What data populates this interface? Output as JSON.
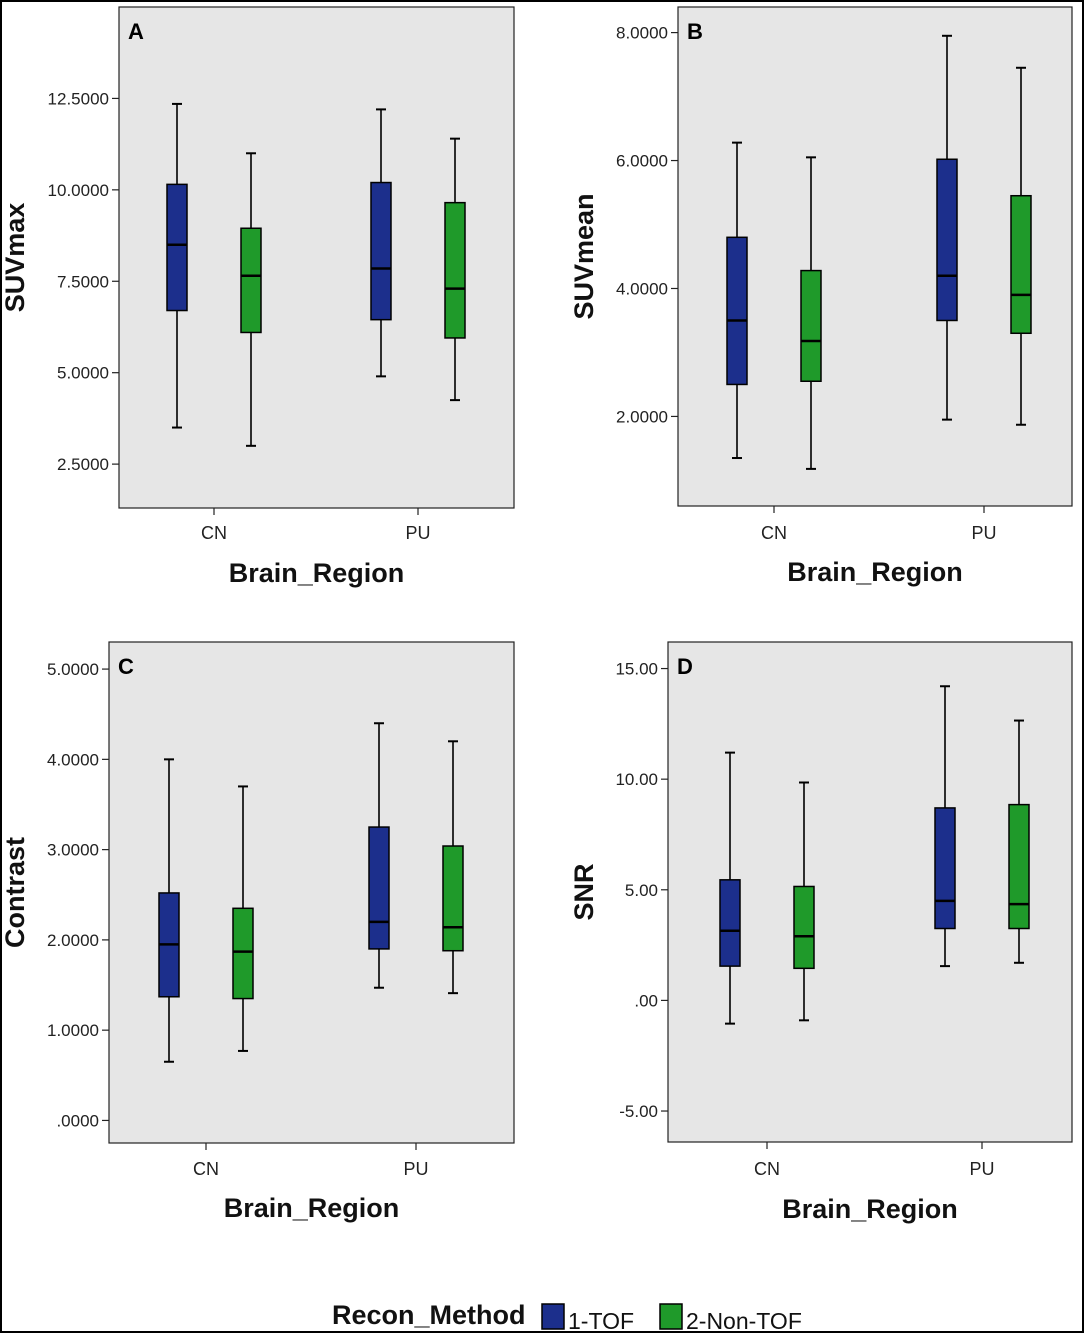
{
  "chart_data": [
    {
      "type": "boxplot",
      "panel_label": "A",
      "xlabel": "Brain_Region",
      "ylabel": "SUVmax",
      "categories": [
        "CN",
        "PU"
      ],
      "yticks": [
        "2.5000",
        "5.0000",
        "7.5000",
        "10.0000",
        "12.5000"
      ],
      "ylim": [
        1.3,
        15.0
      ],
      "series": [
        {
          "name": "1-TOF",
          "boxes": [
            {
              "category": "CN",
              "min": 3.5,
              "q1": 6.7,
              "median": 8.5,
              "q3": 10.15,
              "max": 12.35
            },
            {
              "category": "PU",
              "min": 4.9,
              "q1": 6.45,
              "median": 7.85,
              "q3": 10.2,
              "max": 12.2
            }
          ]
        },
        {
          "name": "2-Non-TOF",
          "boxes": [
            {
              "category": "CN",
              "min": 3.0,
              "q1": 6.1,
              "median": 7.65,
              "q3": 8.95,
              "max": 11.0
            },
            {
              "category": "PU",
              "min": 4.25,
              "q1": 5.95,
              "median": 7.3,
              "q3": 9.65,
              "max": 11.4
            }
          ]
        }
      ]
    },
    {
      "type": "boxplot",
      "panel_label": "B",
      "xlabel": "Brain_Region",
      "ylabel": "SUVmean",
      "categories": [
        "CN",
        "PU"
      ],
      "yticks": [
        "2.0000",
        "4.0000",
        "6.0000",
        "8.0000"
      ],
      "ylim": [
        0.6,
        8.4
      ],
      "series": [
        {
          "name": "1-TOF",
          "boxes": [
            {
              "category": "CN",
              "min": 1.35,
              "q1": 2.5,
              "median": 3.5,
              "q3": 4.8,
              "max": 6.28
            },
            {
              "category": "PU",
              "min": 1.95,
              "q1": 3.5,
              "median": 4.2,
              "q3": 6.02,
              "max": 7.95
            }
          ]
        },
        {
          "name": "2-Non-TOF",
          "boxes": [
            {
              "category": "CN",
              "min": 1.18,
              "q1": 2.55,
              "median": 3.18,
              "q3": 4.28,
              "max": 6.05
            },
            {
              "category": "PU",
              "min": 1.87,
              "q1": 3.3,
              "median": 3.9,
              "q3": 5.45,
              "max": 7.45
            }
          ]
        }
      ]
    },
    {
      "type": "boxplot",
      "panel_label": "C",
      "xlabel": "Brain_Region",
      "ylabel": "Contrast",
      "categories": [
        "CN",
        "PU"
      ],
      "yticks": [
        ".0000",
        "1.0000",
        "2.0000",
        "3.0000",
        "4.0000",
        "5.0000"
      ],
      "ylim": [
        -0.25,
        5.3
      ],
      "series": [
        {
          "name": "1-TOF",
          "boxes": [
            {
              "category": "CN",
              "min": 0.65,
              "q1": 1.37,
              "median": 1.95,
              "q3": 2.52,
              "max": 4.0
            },
            {
              "category": "PU",
              "min": 1.47,
              "q1": 1.9,
              "median": 2.2,
              "q3": 3.25,
              "max": 4.4
            }
          ]
        },
        {
          "name": "2-Non-TOF",
          "boxes": [
            {
              "category": "CN",
              "min": 0.77,
              "q1": 1.35,
              "median": 1.87,
              "q3": 2.35,
              "max": 3.7
            },
            {
              "category": "PU",
              "min": 1.41,
              "q1": 1.88,
              "median": 2.14,
              "q3": 3.04,
              "max": 4.2
            }
          ]
        }
      ]
    },
    {
      "type": "boxplot",
      "panel_label": "D",
      "xlabel": "Brain_Region",
      "ylabel": "SNR",
      "categories": [
        "CN",
        "PU"
      ],
      "yticks": [
        "-5.00",
        ".00",
        "5.00",
        "10.00",
        "15.00"
      ],
      "ylim": [
        -6.4,
        16.2
      ],
      "series": [
        {
          "name": "1-TOF",
          "boxes": [
            {
              "category": "CN",
              "min": -1.05,
              "q1": 1.55,
              "median": 3.15,
              "q3": 5.45,
              "max": 11.2
            },
            {
              "category": "PU",
              "min": 1.55,
              "q1": 3.25,
              "median": 4.5,
              "q3": 8.7,
              "max": 14.2
            }
          ]
        },
        {
          "name": "2-Non-TOF",
          "boxes": [
            {
              "category": "CN",
              "min": -0.9,
              "q1": 1.45,
              "median": 2.9,
              "q3": 5.15,
              "max": 9.85
            },
            {
              "category": "PU",
              "min": 1.7,
              "q1": 3.25,
              "median": 4.35,
              "q3": 8.85,
              "max": 12.65
            }
          ]
        }
      ]
    }
  ],
  "legend": {
    "title": "Recon_Method",
    "items": [
      {
        "label": "1-TOF",
        "color": "#1c2f8c"
      },
      {
        "label": "2-Non-TOF",
        "color": "#1f9a2a"
      }
    ]
  },
  "colors": {
    "panel_bg": "#e6e6e6",
    "series": [
      "#1c2f8c",
      "#1f9a2a"
    ]
  }
}
